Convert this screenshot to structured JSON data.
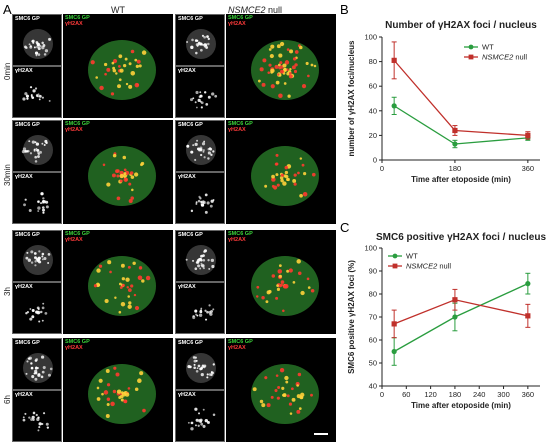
{
  "panel_a": {
    "letter": "A",
    "col_wt": "WT",
    "col_null_italic": "NSMCE2",
    "col_null_rest": " null",
    "rows": [
      "0min",
      "30min",
      "3h",
      "6h"
    ],
    "inset_top_label": "SMC6 GP",
    "inset_bottom_label": "γH2AX",
    "merge_green_label": "SMC6 GP",
    "merge_red_label": "γH2AX"
  },
  "panel_b": {
    "letter": "B",
    "title": "Number of γH2AX foci / nucleus"
  },
  "panel_c": {
    "letter": "C",
    "title": "SMC6 positive γH2AX foci / nucleus"
  },
  "colors": {
    "wt": "#2a9d3f",
    "null": "#c0302b"
  },
  "chart_data": [
    {
      "type": "line",
      "title": "Number of γH2AX foci / nucleus",
      "xlabel": "Time after etoposide (min)",
      "ylabel": "number of γH2AX foci/nucleus",
      "xlim": [
        0,
        390
      ],
      "ylim": [
        0,
        100
      ],
      "xticks": [
        0,
        180,
        360
      ],
      "yticks": [
        0,
        20,
        40,
        60,
        80,
        100
      ],
      "legend": "top-right",
      "series": [
        {
          "name": "WT",
          "x": [
            30,
            180,
            360
          ],
          "y": [
            44,
            13,
            18
          ],
          "err": [
            7,
            3,
            2
          ]
        },
        {
          "name": "NSMCE2 null",
          "x": [
            30,
            180,
            360
          ],
          "y": [
            81,
            24,
            20
          ],
          "err": [
            15,
            4,
            3
          ]
        }
      ]
    },
    {
      "type": "line",
      "title": "SMC6 positive γH2AX foci / nucleus",
      "xlabel": "Time after etoposide (min)",
      "ylabel": "SMC6 positive γH2AX foci (%)",
      "xlim": [
        0,
        390
      ],
      "ylim": [
        40,
        100
      ],
      "xticks": [
        0,
        60,
        120,
        180,
        240,
        300,
        360
      ],
      "yticks": [
        40,
        50,
        60,
        70,
        80,
        90,
        100
      ],
      "legend": "top-left",
      "series": [
        {
          "name": "WT",
          "x": [
            30,
            180,
            360
          ],
          "y": [
            55,
            70,
            84.5
          ],
          "err": [
            6,
            6,
            4.5
          ]
        },
        {
          "name": "NSMCE2 null",
          "x": [
            30,
            180,
            360
          ],
          "y": [
            67,
            77.5,
            70.5
          ],
          "err": [
            6,
            4.5,
            5
          ]
        }
      ]
    }
  ]
}
